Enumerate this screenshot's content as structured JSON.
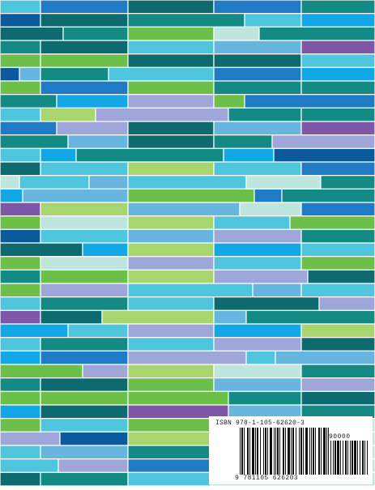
{
  "cover": {
    "palette": [
      "#6cbf48",
      "#138b84",
      "#0d6b6f",
      "#4fc6dd",
      "#1f7bc6",
      "#9fa6da",
      "#7f57a9",
      "#bfe6de",
      "#a8d56d",
      "#12a7e6",
      "#66b6e0",
      "#0b5a9c"
    ],
    "rows": [
      [
        [
          0,
          50,
          3
        ],
        [
          50,
          158,
          4
        ],
        [
          158,
          264,
          2
        ],
        [
          264,
          372,
          4
        ],
        [
          372,
          463,
          1
        ]
      ],
      [
        [
          0,
          50,
          11
        ],
        [
          50,
          158,
          2
        ],
        [
          158,
          302,
          1
        ],
        [
          302,
          372,
          3
        ],
        [
          372,
          463,
          9
        ]
      ],
      [
        [
          0,
          78,
          2
        ],
        [
          78,
          158,
          1
        ],
        [
          158,
          264,
          0
        ],
        [
          264,
          320,
          7
        ],
        [
          320,
          463,
          1
        ]
      ],
      [
        [
          0,
          50,
          1
        ],
        [
          50,
          158,
          2
        ],
        [
          158,
          264,
          3
        ],
        [
          264,
          372,
          10
        ],
        [
          372,
          463,
          6
        ]
      ],
      [
        [
          0,
          50,
          0
        ],
        [
          50,
          158,
          0
        ],
        [
          158,
          264,
          2
        ],
        [
          264,
          372,
          2
        ],
        [
          372,
          463,
          3
        ]
      ],
      [
        [
          0,
          24,
          11
        ],
        [
          24,
          50,
          10
        ],
        [
          50,
          134,
          1
        ],
        [
          134,
          264,
          3
        ],
        [
          264,
          372,
          4
        ],
        [
          372,
          463,
          9
        ]
      ],
      [
        [
          0,
          50,
          0
        ],
        [
          50,
          158,
          4
        ],
        [
          158,
          264,
          0
        ],
        [
          264,
          372,
          1
        ],
        [
          372,
          463,
          1
        ]
      ],
      [
        [
          0,
          70,
          1
        ],
        [
          70,
          158,
          9
        ],
        [
          158,
          264,
          5
        ],
        [
          264,
          302,
          0
        ],
        [
          302,
          463,
          4
        ]
      ],
      [
        [
          0,
          50,
          3
        ],
        [
          50,
          118,
          8
        ],
        [
          118,
          282,
          5
        ],
        [
          282,
          372,
          1
        ],
        [
          372,
          463,
          1
        ]
      ],
      [
        [
          0,
          70,
          4
        ],
        [
          70,
          158,
          5
        ],
        [
          158,
          264,
          2
        ],
        [
          264,
          372,
          10
        ],
        [
          372,
          463,
          6
        ]
      ],
      [
        [
          0,
          84,
          1
        ],
        [
          84,
          158,
          10
        ],
        [
          158,
          264,
          2
        ],
        [
          264,
          336,
          1
        ],
        [
          336,
          463,
          5
        ]
      ],
      [
        [
          0,
          50,
          3
        ],
        [
          50,
          94,
          9
        ],
        [
          94,
          276,
          1
        ],
        [
          276,
          338,
          9
        ],
        [
          338,
          463,
          11
        ]
      ],
      [
        [
          0,
          50,
          2
        ],
        [
          50,
          158,
          3
        ],
        [
          158,
          264,
          8
        ],
        [
          264,
          372,
          3
        ],
        [
          372,
          463,
          4
        ]
      ],
      [
        [
          0,
          24,
          7
        ],
        [
          24,
          110,
          3
        ],
        [
          110,
          158,
          10
        ],
        [
          158,
          304,
          3
        ],
        [
          304,
          396,
          7
        ],
        [
          396,
          463,
          1
        ]
      ],
      [
        [
          0,
          28,
          9
        ],
        [
          28,
          158,
          10
        ],
        [
          158,
          314,
          0
        ],
        [
          314,
          348,
          4
        ],
        [
          348,
          463,
          1
        ]
      ],
      [
        [
          0,
          50,
          6
        ],
        [
          50,
          158,
          8
        ],
        [
          158,
          296,
          10
        ],
        [
          296,
          372,
          7
        ],
        [
          372,
          463,
          4
        ]
      ],
      [
        [
          0,
          50,
          0
        ],
        [
          50,
          158,
          7
        ],
        [
          158,
          264,
          8
        ],
        [
          264,
          358,
          3
        ],
        [
          358,
          463,
          0
        ]
      ],
      [
        [
          0,
          50,
          11
        ],
        [
          50,
          158,
          3
        ],
        [
          158,
          264,
          10
        ],
        [
          264,
          372,
          5
        ],
        [
          372,
          463,
          1
        ]
      ],
      [
        [
          0,
          102,
          2
        ],
        [
          102,
          158,
          9
        ],
        [
          158,
          264,
          8
        ],
        [
          264,
          372,
          9
        ],
        [
          372,
          463,
          3
        ]
      ],
      [
        [
          0,
          50,
          0
        ],
        [
          50,
          158,
          7
        ],
        [
          158,
          264,
          5
        ],
        [
          264,
          372,
          3
        ],
        [
          372,
          463,
          0
        ]
      ],
      [
        [
          0,
          50,
          1
        ],
        [
          50,
          158,
          0
        ],
        [
          158,
          264,
          8
        ],
        [
          264,
          380,
          5
        ],
        [
          380,
          463,
          2
        ]
      ],
      [
        [
          0,
          50,
          0
        ],
        [
          50,
          158,
          5
        ],
        [
          158,
          312,
          3
        ],
        [
          312,
          372,
          10
        ],
        [
          372,
          463,
          3
        ]
      ],
      [
        [
          0,
          50,
          3
        ],
        [
          50,
          158,
          1
        ],
        [
          158,
          264,
          3
        ],
        [
          264,
          394,
          2
        ],
        [
          394,
          463,
          5
        ]
      ],
      [
        [
          0,
          50,
          6
        ],
        [
          50,
          126,
          2
        ],
        [
          126,
          264,
          8
        ],
        [
          264,
          304,
          10
        ],
        [
          304,
          463,
          1
        ]
      ],
      [
        [
          0,
          84,
          9
        ],
        [
          84,
          158,
          3
        ],
        [
          158,
          264,
          5
        ],
        [
          264,
          372,
          9
        ],
        [
          372,
          463,
          8
        ]
      ],
      [
        [
          0,
          50,
          3
        ],
        [
          50,
          158,
          1
        ],
        [
          158,
          264,
          3
        ],
        [
          264,
          372,
          5
        ],
        [
          372,
          463,
          2
        ]
      ],
      [
        [
          0,
          50,
          9
        ],
        [
          50,
          158,
          4
        ],
        [
          158,
          304,
          5
        ],
        [
          304,
          340,
          3
        ],
        [
          340,
          463,
          10
        ]
      ],
      [
        [
          0,
          102,
          0
        ],
        [
          102,
          158,
          5
        ],
        [
          158,
          264,
          8
        ],
        [
          264,
          372,
          7
        ],
        [
          372,
          463,
          1
        ]
      ],
      [
        [
          0,
          50,
          1
        ],
        [
          50,
          158,
          2
        ],
        [
          158,
          264,
          0
        ],
        [
          264,
          372,
          10
        ],
        [
          372,
          463,
          5
        ]
      ],
      [
        [
          0,
          50,
          0
        ],
        [
          50,
          158,
          0
        ],
        [
          158,
          282,
          0
        ],
        [
          282,
          372,
          1
        ],
        [
          372,
          463,
          2
        ]
      ],
      [
        [
          0,
          50,
          9
        ],
        [
          50,
          158,
          2
        ],
        [
          158,
          282,
          6
        ],
        [
          282,
          372,
          10
        ],
        [
          372,
          463,
          1
        ]
      ],
      [
        [
          0,
          50,
          0
        ],
        [
          50,
          158,
          3
        ],
        [
          158,
          260,
          0
        ],
        [
          260,
          463,
          7
        ]
      ],
      [
        [
          0,
          74,
          5
        ],
        [
          74,
          158,
          11
        ],
        [
          158,
          260,
          8
        ],
        [
          260,
          463,
          7
        ]
      ],
      [
        [
          0,
          50,
          3
        ],
        [
          50,
          158,
          10
        ],
        [
          158,
          260,
          1
        ],
        [
          260,
          463,
          7
        ]
      ],
      [
        [
          0,
          72,
          3
        ],
        [
          72,
          158,
          5
        ],
        [
          158,
          260,
          4
        ],
        [
          260,
          463,
          7
        ]
      ],
      [
        [
          0,
          50,
          2
        ],
        [
          50,
          158,
          1
        ],
        [
          158,
          260,
          3
        ],
        [
          260,
          463,
          7
        ]
      ]
    ]
  },
  "barcode": {
    "isbn_label": "ISBN 978-1-105-62620-3",
    "addon_code": "90000",
    "ean_digits": "9 781105 626203"
  }
}
